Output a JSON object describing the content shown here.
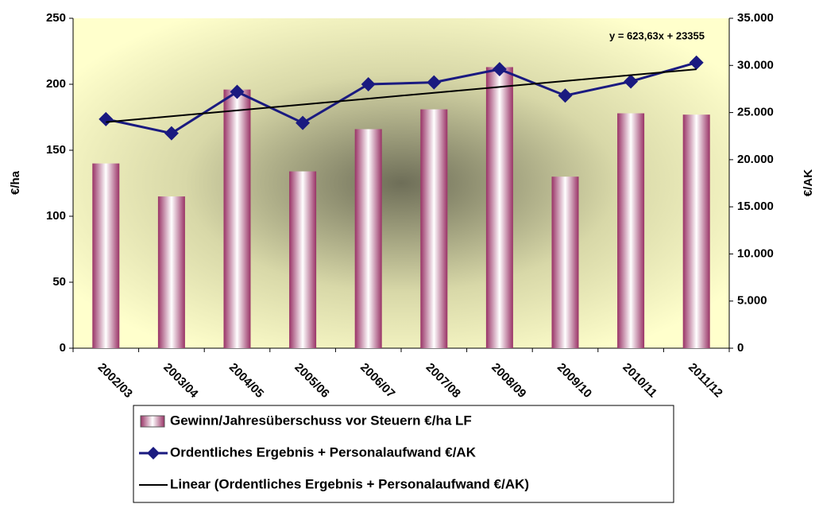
{
  "chart_data": {
    "type": "bar",
    "categories": [
      "2002/03",
      "2003/04",
      "2004/05",
      "2005/06",
      "2006/07",
      "2007/08",
      "2008/09",
      "2009/10",
      "2010/11",
      "2011/12"
    ],
    "series": [
      {
        "name": "Gewinn/Jahresüberschuss vor Steuern €/ha LF",
        "type": "bar",
        "color": "#993366",
        "values": [
          140,
          115,
          196,
          134,
          166,
          181,
          213,
          130,
          178,
          177
        ]
      },
      {
        "name": "Ordentliches Ergebnis + Personalaufwand €/AK",
        "type": "line",
        "marker": "diamond",
        "axis": "y2",
        "color": "#1a1a80",
        "values": [
          24300,
          22800,
          27200,
          23900,
          28000,
          28200,
          29600,
          26800,
          28300,
          30300
        ]
      },
      {
        "name": "Linear (Ordentliches Ergebnis + Personalaufwand €/AK)",
        "type": "line",
        "axis": "y2",
        "color": "#000000",
        "values": [
          23979,
          24602,
          25226,
          25850,
          26473,
          27097,
          27720,
          28344,
          28968,
          29591
        ]
      }
    ],
    "annotation": "y = 623,63x + 23355",
    "ylabel": "€/ha",
    "y2label": "€/AK",
    "ylim": [
      0,
      250
    ],
    "yticks": [
      0,
      50,
      100,
      150,
      200,
      250
    ],
    "y2lim": [
      0,
      35000
    ],
    "y2ticks": [
      0,
      {
        "value": 5000,
        "label": "5.000"
      },
      {
        "value": 10000,
        "label": "10.000"
      },
      {
        "value": 15000,
        "label": "15.000"
      },
      {
        "value": 20000,
        "label": "20.000"
      },
      {
        "value": 25000,
        "label": "25.000"
      },
      {
        "value": 30000,
        "label": "30.000"
      },
      {
        "value": 35000,
        "label": "35.000"
      }
    ],
    "legend": "bottom"
  }
}
